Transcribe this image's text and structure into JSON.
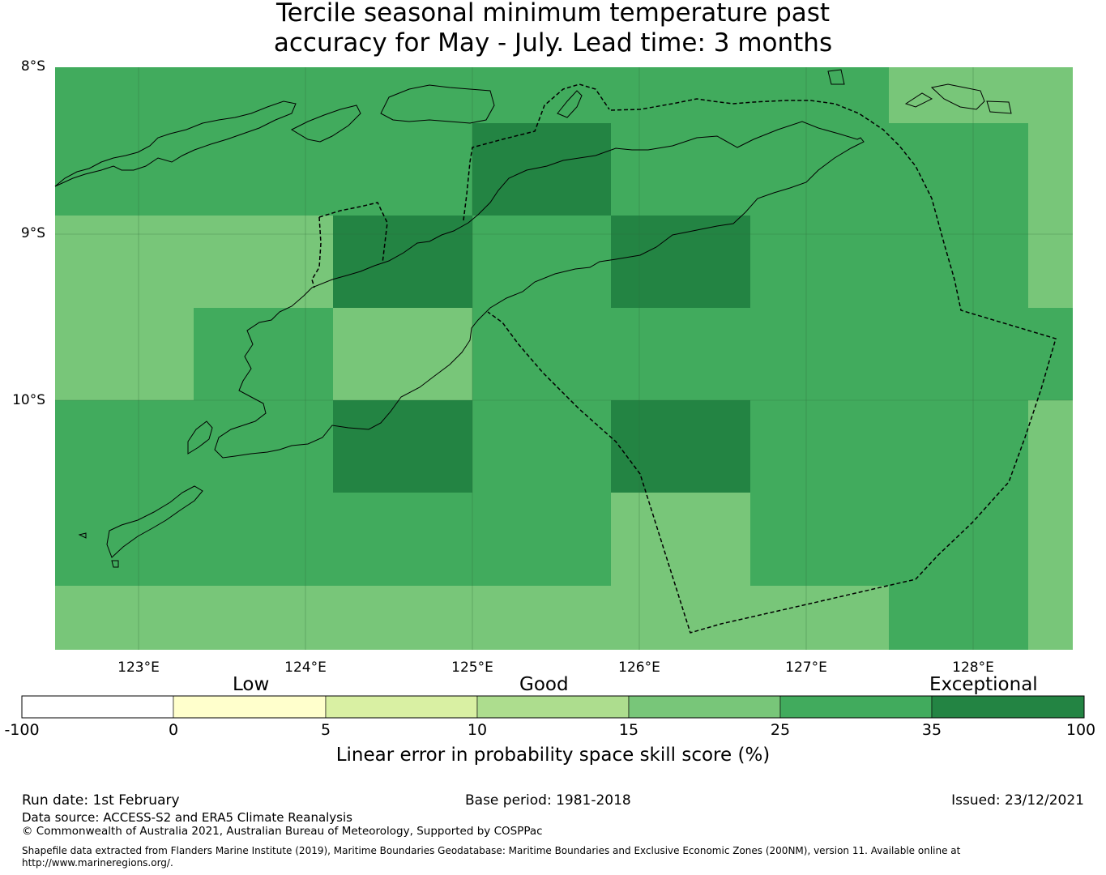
{
  "title": {
    "line1": "Tercile seasonal minimum temperature past",
    "line2": "accuracy for May - July. Lead time: 3 months"
  },
  "map": {
    "lat_labels": [
      "8°S",
      "9°S",
      "10°S"
    ],
    "lon_labels": [
      "123°E",
      "124°E",
      "125°E",
      "126°E",
      "127°E",
      "128°E"
    ],
    "extent": {
      "lon_min": 122.5,
      "lon_max": 128.6,
      "lat_max": -7.95,
      "lat_min": -11.45
    },
    "grid_cell_values": [
      [
        25,
        25,
        25,
        25,
        25,
        25,
        15,
        15
      ],
      [
        25,
        25,
        25,
        35,
        25,
        25,
        25,
        15
      ],
      [
        15,
        15,
        35,
        25,
        35,
        25,
        25,
        15
      ],
      [
        15,
        25,
        15,
        25,
        25,
        25,
        25,
        25
      ],
      [
        25,
        25,
        35,
        25,
        35,
        25,
        25,
        15
      ],
      [
        25,
        25,
        25,
        25,
        15,
        25,
        25,
        15
      ],
      [
        15,
        15,
        15,
        15,
        15,
        15,
        25,
        15
      ]
    ]
  },
  "colorbar": {
    "categories": [
      "Low",
      "Good",
      "Exceptional"
    ],
    "ticks": [
      "-100",
      "0",
      "5",
      "10",
      "15",
      "25",
      "35",
      "100"
    ],
    "colors": [
      "#ffffff",
      "#ffffcc",
      "#d9f0a3",
      "#addd8e",
      "#78c679",
      "#41ab5d",
      "#238443"
    ],
    "label": "Linear error in probability space skill score (%)"
  },
  "footer": {
    "run_date": "Run date: 1st February",
    "base_period": "Base period: 1981-2018",
    "issued": "Issued: 23/12/2021",
    "data_source": "Data source: ACCESS-S2 and ERA5 Climate Reanalysis",
    "copyright": "© Commonwealth of Australia 2021, Australian Bureau of Meteorology, Supported by COSPPac",
    "shapefile_line1": "Shapefile data extracted from Flanders Marine Institute (2019), Maritime Boundaries Geodatabase: Maritime Boundaries and Exclusive Economic Zones (200NM), version 11. Available online at",
    "shapefile_line2": "http://www.marineregions.org/."
  }
}
